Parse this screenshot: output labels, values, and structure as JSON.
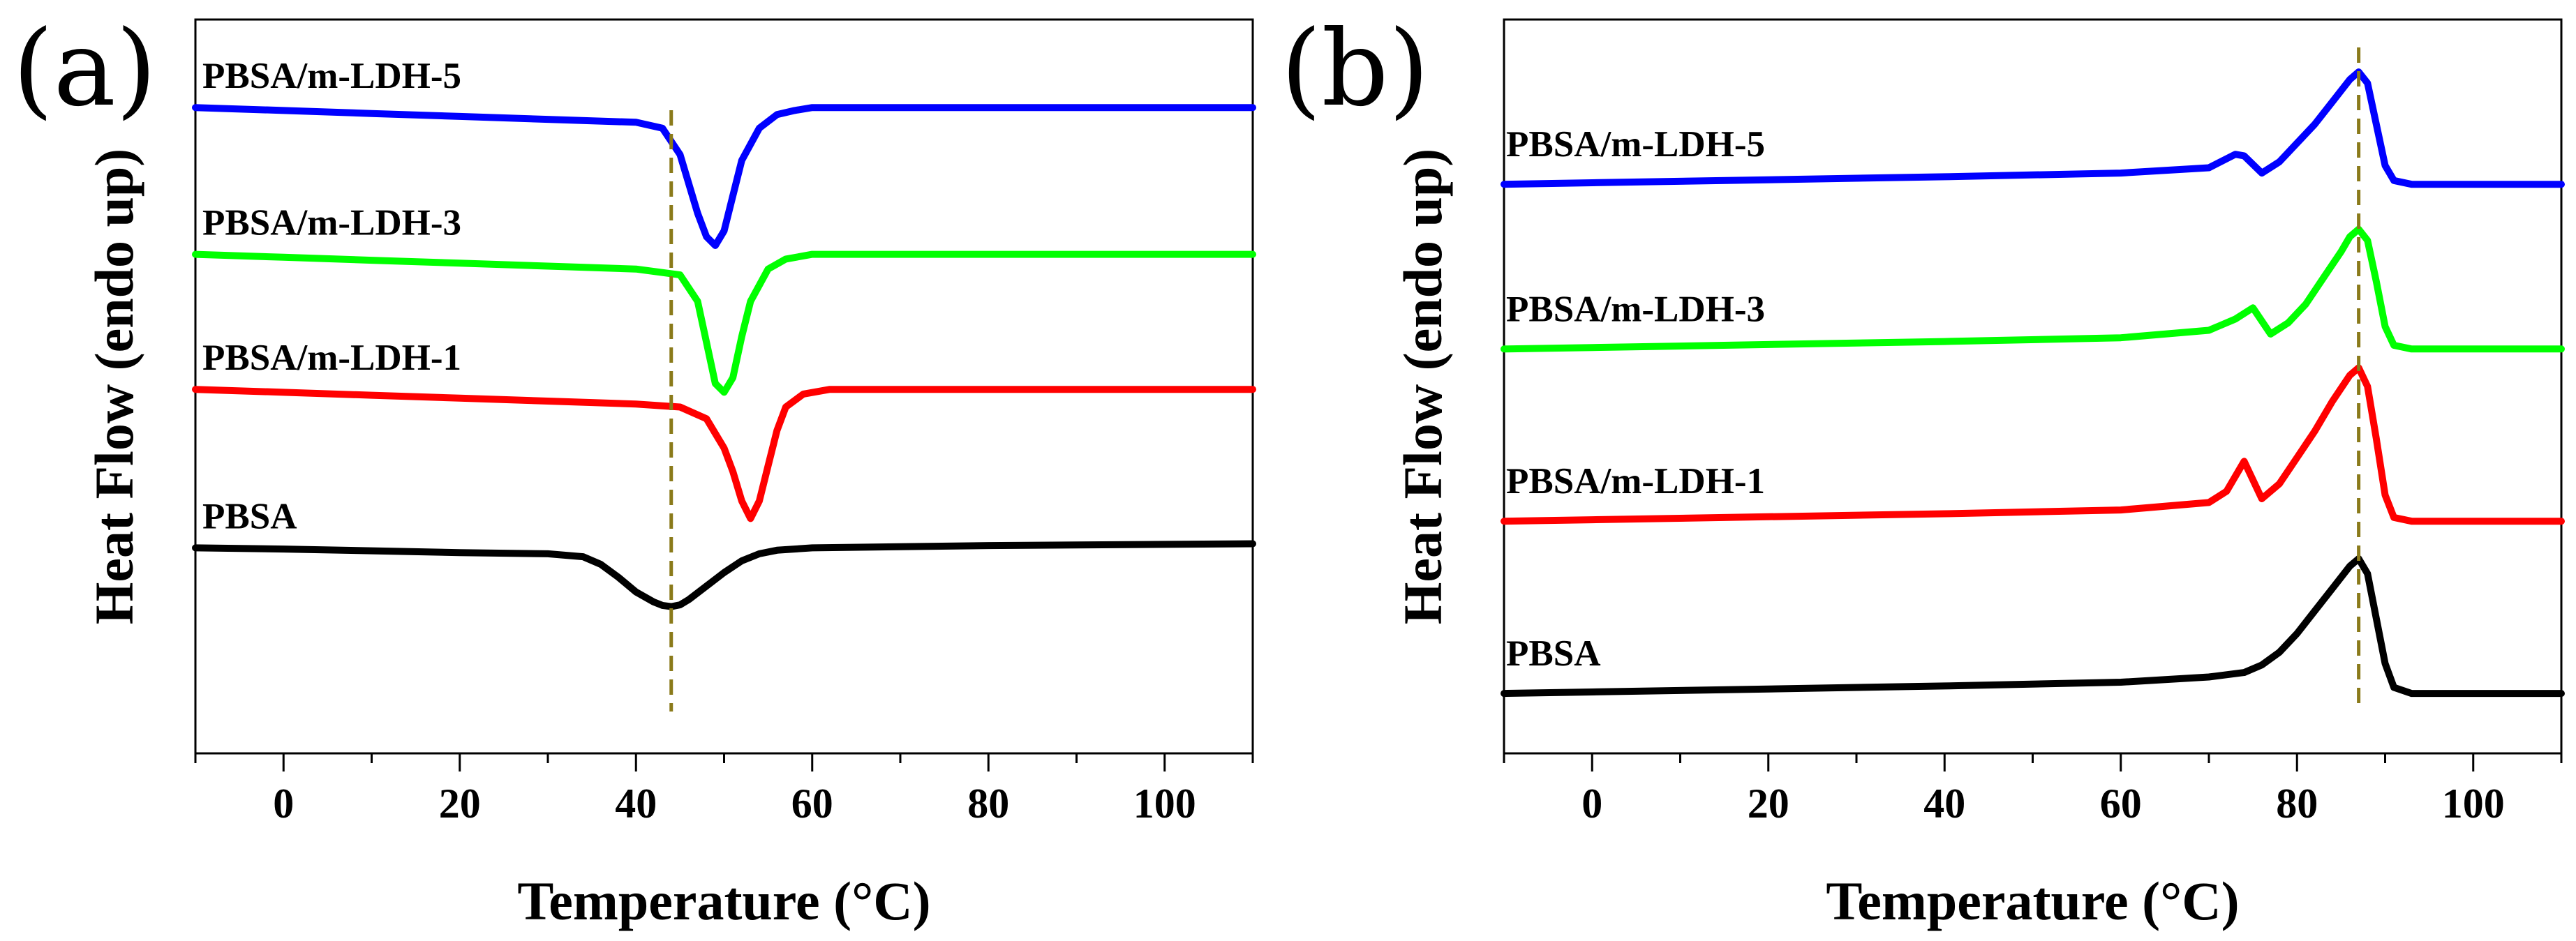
{
  "colors": {
    "PBSA": "#000000",
    "PBSA/m-LDH-1": "#ff0000",
    "PBSA/m-LDH-3": "#00ff00",
    "PBSA/m-LDH-5": "#0000ff",
    "reference_line": "#8a7a1a"
  },
  "chart_data": [
    {
      "panel": "(a)",
      "type": "line",
      "xlabel": "Temperature (°C)",
      "ylabel": "Heat Flow (endo up)",
      "xlim": [
        -10,
        110
      ],
      "xticks": [
        0,
        20,
        40,
        60,
        80,
        100
      ],
      "yticks_shown": false,
      "reference_line_x": 44,
      "series": [
        {
          "name": "PBSA/m-LDH-5",
          "color": "#0000ff",
          "offset": 7.5,
          "x": [
            -10,
            0,
            10,
            20,
            30,
            40,
            43,
            45,
            47,
            48,
            49,
            50,
            51,
            52,
            54,
            56,
            58,
            60,
            70,
            80,
            90,
            100,
            110
          ],
          "y": [
            0.0,
            -0.05,
            -0.1,
            -0.15,
            -0.2,
            -0.25,
            -0.35,
            -0.8,
            -1.8,
            -2.2,
            -2.35,
            -2.1,
            -1.5,
            -0.9,
            -0.35,
            -0.12,
            -0.05,
            0.0,
            0.0,
            0.0,
            0.0,
            0.0,
            0.0
          ]
        },
        {
          "name": "PBSA/m-LDH-3",
          "color": "#00ff00",
          "offset": 5.0,
          "x": [
            -10,
            0,
            10,
            20,
            30,
            40,
            45,
            47,
            48,
            49,
            50,
            51,
            52,
            53,
            55,
            57,
            60,
            70,
            80,
            90,
            100,
            110
          ],
          "y": [
            0.0,
            -0.05,
            -0.1,
            -0.15,
            -0.2,
            -0.25,
            -0.35,
            -0.8,
            -1.5,
            -2.2,
            -2.35,
            -2.1,
            -1.4,
            -0.8,
            -0.25,
            -0.08,
            0.0,
            0.0,
            0.0,
            0.0,
            0.0,
            0.0
          ]
        },
        {
          "name": "PBSA/m-LDH-1",
          "color": "#ff0000",
          "offset": 2.7,
          "x": [
            -10,
            0,
            10,
            20,
            30,
            40,
            45,
            48,
            50,
            51,
            52,
            53,
            54,
            55,
            56,
            57,
            59,
            62,
            70,
            80,
            90,
            100,
            110
          ],
          "y": [
            0.0,
            -0.05,
            -0.1,
            -0.15,
            -0.2,
            -0.25,
            -0.3,
            -0.5,
            -1.0,
            -1.4,
            -1.9,
            -2.2,
            -1.9,
            -1.3,
            -0.7,
            -0.3,
            -0.08,
            0.0,
            0.0,
            0.0,
            0.0,
            0.0,
            0.0
          ]
        },
        {
          "name": "PBSA",
          "color": "#000000",
          "offset": 0.0,
          "x": [
            -10,
            0,
            10,
            20,
            30,
            34,
            36,
            38,
            40,
            42,
            43,
            44,
            45,
            46,
            48,
            50,
            52,
            54,
            56,
            60,
            70,
            80,
            90,
            100,
            110
          ],
          "y": [
            0.0,
            -0.02,
            -0.05,
            -0.08,
            -0.1,
            -0.15,
            -0.28,
            -0.5,
            -0.75,
            -0.92,
            -0.98,
            -1.0,
            -0.97,
            -0.88,
            -0.65,
            -0.42,
            -0.22,
            -0.1,
            -0.04,
            0.0,
            0.02,
            0.04,
            0.05,
            0.06,
            0.07
          ]
        }
      ]
    },
    {
      "panel": "(b)",
      "type": "line",
      "xlabel": "Temperature (°C)",
      "ylabel": "Heat Flow (endo up)",
      "xlim": [
        -10,
        110
      ],
      "xticks": [
        0,
        20,
        40,
        60,
        80,
        100
      ],
      "yticks_shown": false,
      "reference_line_x": 87,
      "series": [
        {
          "name": "PBSA/m-LDH-5",
          "color": "#0000ff",
          "offset": 6.8,
          "x": [
            -10,
            0,
            20,
            40,
            60,
            70,
            73,
            74,
            76,
            78,
            80,
            82,
            84,
            86,
            87,
            88,
            89,
            90,
            91,
            93,
            100,
            110
          ],
          "y": [
            0.0,
            0.02,
            0.06,
            0.1,
            0.15,
            0.22,
            0.4,
            0.38,
            0.15,
            0.3,
            0.55,
            0.8,
            1.1,
            1.4,
            1.5,
            1.35,
            0.8,
            0.25,
            0.05,
            0.0,
            0.0,
            0.0
          ]
        },
        {
          "name": "PBSA/m-LDH-3",
          "color": "#00ff00",
          "offset": 4.6,
          "x": [
            -10,
            0,
            20,
            40,
            60,
            70,
            73,
            75,
            77,
            79,
            81,
            83,
            85,
            86,
            87,
            88,
            89,
            90,
            91,
            93,
            100,
            110
          ],
          "y": [
            0.0,
            0.02,
            0.06,
            0.1,
            0.15,
            0.25,
            0.4,
            0.55,
            0.2,
            0.35,
            0.6,
            0.95,
            1.3,
            1.5,
            1.6,
            1.45,
            0.9,
            0.3,
            0.05,
            0.0,
            0.0,
            0.0
          ]
        },
        {
          "name": "PBSA/m-LDH-1",
          "color": "#ff0000",
          "offset": 2.3,
          "x": [
            -10,
            0,
            20,
            40,
            60,
            70,
            72,
            74,
            76,
            78,
            80,
            82,
            84,
            86,
            87,
            88,
            89,
            90,
            91,
            93,
            100,
            110
          ],
          "y": [
            0.0,
            0.02,
            0.06,
            0.1,
            0.15,
            0.25,
            0.4,
            0.8,
            0.3,
            0.5,
            0.85,
            1.2,
            1.6,
            1.95,
            2.05,
            1.8,
            1.1,
            0.35,
            0.05,
            0.0,
            0.0,
            0.0
          ]
        },
        {
          "name": "PBSA",
          "color": "#000000",
          "offset": 0.0,
          "x": [
            -10,
            0,
            20,
            40,
            60,
            70,
            74,
            76,
            78,
            80,
            82,
            84,
            86,
            87,
            88,
            89,
            90,
            91,
            93,
            100,
            110
          ],
          "y": [
            0.0,
            0.02,
            0.06,
            0.1,
            0.15,
            0.22,
            0.28,
            0.38,
            0.55,
            0.8,
            1.1,
            1.4,
            1.7,
            1.8,
            1.6,
            1.0,
            0.4,
            0.08,
            0.0,
            0.0,
            0.0
          ]
        }
      ]
    }
  ]
}
